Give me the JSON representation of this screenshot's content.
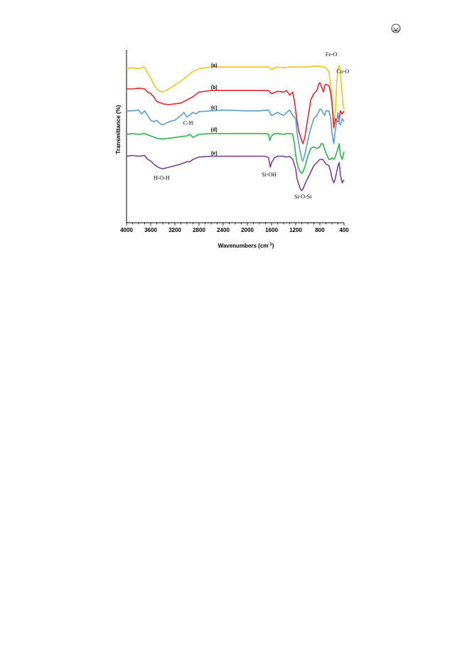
{
  "page": {
    "corner_icon": "circled-arrow-down-icon"
  },
  "chart_data": {
    "type": "line",
    "xlabel": "Wavenumbers (cm",
    "xlabel_superscript": "-1",
    "xlabel_close": ")",
    "ylabel": "Transmittance (%)",
    "xlim": [
      4000,
      400
    ],
    "x_reversed": true,
    "x_ticks": [
      4000,
      3600,
      3200,
      2800,
      2400,
      2000,
      1600,
      1200,
      800,
      400
    ],
    "x_tick_labels": [
      "4000",
      "3600",
      "3200",
      "2800",
      "2400",
      "2000",
      "1600",
      "1200",
      "800",
      "400"
    ],
    "y_ticks_labeled": false,
    "ylim": [
      0,
      100
    ],
    "grid": false,
    "legend": "none (series labels above each curve)",
    "series": [
      {
        "name": "(a)",
        "color": "#f2c418",
        "label_at": [
          2550,
          89
        ],
        "x": [
          4000,
          3900,
          3800,
          3700,
          3650,
          3600,
          3550,
          3500,
          3450,
          3400,
          3350,
          3300,
          3200,
          3100,
          3000,
          2900,
          2800,
          2600,
          2400,
          2000,
          1800,
          1650,
          1600,
          1500,
          1400,
          1300,
          1200,
          1100,
          1000,
          900,
          800,
          750,
          700,
          650,
          600,
          570,
          540,
          520,
          500,
          480,
          460,
          440,
          420,
          400
        ],
        "values": [
          88,
          88.5,
          88,
          89,
          85,
          82,
          78,
          75,
          73.5,
          73,
          74,
          75,
          77.5,
          80,
          83,
          86,
          88,
          89,
          89,
          89,
          89,
          89,
          87.5,
          89,
          88.5,
          89,
          89,
          89,
          89,
          89.5,
          89.5,
          89,
          88.5,
          86,
          70,
          52,
          62,
          80,
          88,
          90,
          86,
          75,
          66,
          62
        ]
      },
      {
        "name": "(b)",
        "color": "#e8262b",
        "label_at": [
          2550,
          75
        ],
        "x": [
          4000,
          3900,
          3800,
          3700,
          3650,
          3600,
          3550,
          3500,
          3400,
          3300,
          3200,
          3100,
          3000,
          2900,
          2800,
          2600,
          2400,
          2000,
          1800,
          1650,
          1600,
          1500,
          1400,
          1350,
          1300,
          1250,
          1220,
          1180,
          1150,
          1100,
          1080,
          1050,
          1000,
          950,
          900,
          850,
          820,
          800,
          770,
          740,
          720,
          700,
          650,
          620,
          600,
          570,
          540,
          510,
          480,
          460,
          430,
          400
        ],
        "values": [
          75,
          75,
          75.5,
          75,
          73,
          72,
          70,
          67,
          65.5,
          65,
          65.5,
          66,
          68,
          70,
          73,
          74,
          74,
          74,
          74,
          74,
          72,
          73.5,
          73,
          74,
          71,
          73,
          67,
          55,
          48,
          42,
          40,
          44,
          56,
          68,
          72,
          74,
          78,
          79,
          76,
          73,
          77,
          78,
          77,
          72,
          66,
          50,
          56,
          54,
          55,
          61,
          59,
          61
        ]
      },
      {
        "name": "(c)",
        "color": "#5b9bd5",
        "label_at": [
          2550,
          62
        ],
        "x": [
          4000,
          3900,
          3800,
          3750,
          3700,
          3650,
          3600,
          3550,
          3500,
          3450,
          3400,
          3350,
          3300,
          3200,
          3100,
          3050,
          3000,
          2950,
          2900,
          2850,
          2800,
          2600,
          2400,
          2000,
          1800,
          1650,
          1600,
          1500,
          1400,
          1350,
          1300,
          1250,
          1200,
          1180,
          1150,
          1120,
          1100,
          1080,
          1050,
          1000,
          950,
          900,
          850,
          800,
          780,
          750,
          720,
          700,
          650,
          620,
          600,
          570,
          550,
          500,
          480,
          460,
          430,
          400
        ],
        "values": [
          61,
          61,
          61.5,
          59,
          61,
          58,
          55,
          54,
          55,
          53,
          52,
          53,
          54,
          55,
          58,
          60,
          57,
          58.5,
          60,
          59,
          60.5,
          61,
          61.5,
          61,
          61,
          61.5,
          58,
          60,
          58,
          60,
          61.5,
          58,
          56,
          48,
          40,
          34,
          30,
          29,
          33,
          42,
          50,
          56,
          58,
          62,
          62,
          60,
          58,
          61,
          61,
          56,
          47,
          40,
          47,
          60,
          53,
          52,
          56,
          54
        ]
      },
      {
        "name": "(d)",
        "color": "#2db34a",
        "label_at": [
          2550,
          48
        ],
        "x": [
          4000,
          3900,
          3800,
          3700,
          3600,
          3500,
          3400,
          3300,
          3200,
          3100,
          3000,
          2950,
          2900,
          2800,
          2600,
          2400,
          2000,
          1800,
          1700,
          1650,
          1630,
          1600,
          1550,
          1500,
          1400,
          1350,
          1300,
          1250,
          1220,
          1200,
          1180,
          1150,
          1120,
          1100,
          1080,
          1050,
          1000,
          950,
          900,
          850,
          800,
          780,
          750,
          700,
          650,
          620,
          600,
          570,
          550,
          500,
          480,
          460,
          430,
          400
        ],
        "values": [
          46,
          46.5,
          46,
          46.5,
          45,
          43.5,
          43,
          43.5,
          44,
          44.5,
          45,
          46,
          44,
          46,
          46.5,
          46.5,
          46.5,
          46.5,
          46.5,
          46,
          42,
          45,
          46.5,
          46.5,
          46,
          46.5,
          46.5,
          46,
          40,
          33,
          28,
          24,
          22,
          21,
          22,
          25,
          32,
          37,
          38,
          37,
          38,
          40,
          40,
          34,
          30,
          30,
          31,
          30,
          31,
          37,
          40,
          33,
          30,
          35
        ]
      },
      {
        "name": "(e)",
        "color": "#7b3fa0",
        "label_at": [
          2550,
          33
        ],
        "x": [
          4000,
          3900,
          3800,
          3700,
          3650,
          3600,
          3550,
          3500,
          3450,
          3400,
          3350,
          3300,
          3200,
          3100,
          3000,
          2950,
          2900,
          2800,
          2600,
          2400,
          2000,
          1800,
          1700,
          1650,
          1630,
          1620,
          1600,
          1550,
          1500,
          1400,
          1350,
          1300,
          1250,
          1200,
          1180,
          1150,
          1120,
          1100,
          1080,
          1050,
          1000,
          950,
          900,
          850,
          800,
          780,
          750,
          700,
          650,
          620,
          600,
          570,
          550,
          500,
          480,
          460,
          430,
          400
        ],
        "values": [
          32,
          32.5,
          32,
          32.5,
          30,
          29,
          27,
          25.5,
          24.5,
          24,
          24.5,
          25,
          26,
          27,
          28.5,
          28.5,
          30,
          31.5,
          32,
          32,
          32,
          32,
          32,
          31,
          27,
          25,
          28,
          31,
          32,
          32,
          31.5,
          32,
          30,
          24,
          18,
          14,
          11,
          10,
          11,
          14,
          18,
          22,
          26,
          28,
          30,
          30,
          30,
          27,
          26,
          22,
          18,
          15,
          17,
          26,
          28,
          20,
          15,
          17
        ]
      }
    ],
    "annotations": [
      {
        "text": "Fe-O",
        "x": 610,
        "y": 96
      },
      {
        "text": "Co-O",
        "x": 420,
        "y": 85
      },
      {
        "text": "C-H",
        "x": 2980,
        "y": 52
      },
      {
        "text": "H-O-H",
        "x": 3420,
        "y": 17
      },
      {
        "text": "Si-OH",
        "x": 1640,
        "y": 19
      },
      {
        "text": "Si-O-Si",
        "x": 1080,
        "y": 5
      }
    ]
  }
}
